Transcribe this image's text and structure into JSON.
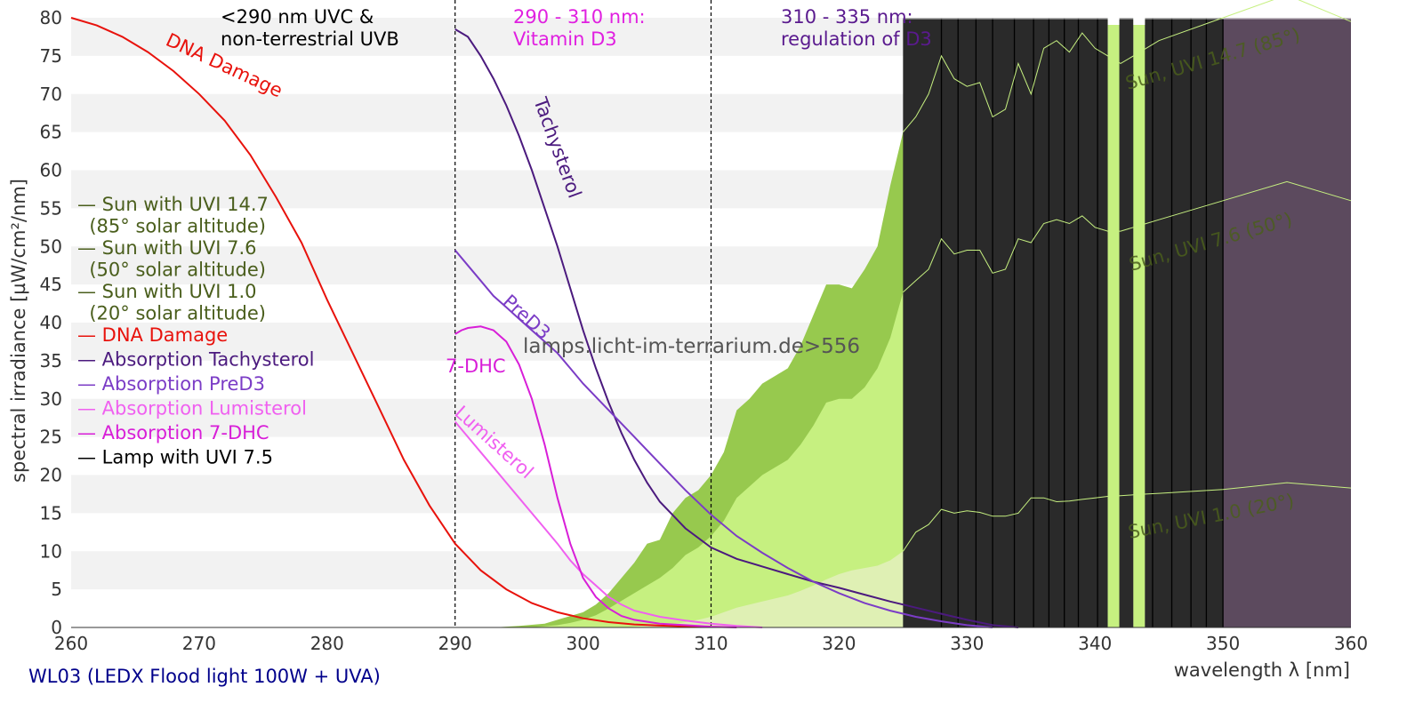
{
  "colors": {
    "background": "#ffffff",
    "band": "#f2f2f2",
    "sun": "#4a5e1c",
    "sun_high_fill": "#97c94e",
    "sun_mid_fill": "#c6f080",
    "sun_low_fill": "#dff0b4",
    "dna": "#e8120c",
    "tachysterol": "#4b1a7e",
    "pred3": "#7b3cc6",
    "lumisterol": "#f060f0",
    "dhc": "#d81ed8",
    "lamp": "#000000",
    "lamp_dark": "#2a2a2a",
    "lamp_uva": "#5c4a5e",
    "lamp_bright": "#c6f080",
    "vitd3_text": "#e020e0",
    "regd3_text": "#5a1a8e",
    "caption": "#00008b",
    "watermark": "#555555"
  },
  "chart_data": {
    "type": "line",
    "x_range": [
      260,
      360
    ],
    "y_range": [
      0,
      80
    ],
    "x_ticks": [
      260,
      270,
      280,
      290,
      300,
      310,
      320,
      330,
      340,
      350,
      360
    ],
    "y_ticks": [
      0,
      5,
      10,
      15,
      20,
      25,
      30,
      35,
      40,
      45,
      50,
      55,
      60,
      65,
      70,
      75,
      80
    ],
    "xlabel": "wavelength λ [nm]",
    "ylabel": "spectral irradiance [µW/cm²/nm]",
    "grid": "horizontal bands",
    "legend_position": "left",
    "caption": "WL03 (LEDX Flood light 100W + UVA)",
    "watermark": "lamps.licht-im-terrarium.de>556",
    "region_labels": [
      {
        "id": "uvc",
        "lines": [
          "<290 nm UVC &",
          "non-terrestrial UVB"
        ]
      },
      {
        "id": "vitd3",
        "lines": [
          "290 - 310 nm:",
          "Vitamin D3"
        ]
      },
      {
        "id": "regd3",
        "lines": [
          "310 - 335 nm:",
          "regulation of D3"
        ]
      }
    ],
    "dividers": [
      290,
      310
    ],
    "legend": [
      {
        "id": "sun_high",
        "lines": [
          "— Sun with UVI 14.7",
          "  (85° solar altitude)"
        ]
      },
      {
        "id": "sun_mid",
        "lines": [
          "— Sun with UVI 7.6",
          "  (50° solar altitude)"
        ]
      },
      {
        "id": "sun_low",
        "lines": [
          "— Sun with UVI 1.0",
          "  (20° solar altitude)"
        ]
      },
      {
        "id": "dna",
        "lines": [
          "— DNA Damage"
        ]
      },
      {
        "id": "tachysterol",
        "lines": [
          "— Absorption Tachysterol"
        ]
      },
      {
        "id": "pred3",
        "lines": [
          "— Absorption PreD3"
        ]
      },
      {
        "id": "lumisterol",
        "lines": [
          "— Absorption Lumisterol"
        ]
      },
      {
        "id": "dhc",
        "lines": [
          "— Absorption 7-DHC"
        ]
      },
      {
        "id": "lamp",
        "lines": [
          "— Lamp with UVI 7.5"
        ]
      }
    ],
    "curve_labels": [
      {
        "id": "dna",
        "text": "DNA Damage"
      },
      {
        "id": "tachysterol",
        "text": "Tachysterol"
      },
      {
        "id": "pred3",
        "text": "PreD3"
      },
      {
        "id": "dhc",
        "text": "7-DHC"
      },
      {
        "id": "lumisterol",
        "text": "Lumisterol"
      },
      {
        "id": "sun_high",
        "text": "Sun, UVI 14.7 (85°)"
      },
      {
        "id": "sun_mid",
        "text": "Sun, UVI 7.6 (50°)"
      },
      {
        "id": "sun_low",
        "text": "Sun, UVI 1.0 (20°)"
      }
    ],
    "series": [
      {
        "id": "sun_high",
        "name": "Sun with UVI 14.7",
        "x": [
          293,
          295,
          297,
          298,
          299,
          300,
          301,
          302,
          303,
          304,
          305,
          306,
          307,
          308,
          309,
          310,
          311,
          312,
          313,
          314,
          315,
          316,
          317,
          318,
          319,
          320,
          321,
          322,
          323,
          324,
          325,
          326,
          327,
          328,
          329,
          330,
          331,
          332,
          333,
          334,
          335,
          336,
          337,
          338,
          339,
          340,
          341,
          342,
          343,
          344,
          345,
          350,
          355,
          360
        ],
        "y": [
          0,
          0.2,
          0.5,
          1,
          1.5,
          2,
          3,
          4.5,
          6.5,
          8.5,
          11,
          11.5,
          15,
          17,
          18,
          20,
          23,
          28.5,
          30,
          32,
          33,
          34,
          37,
          41,
          45,
          45,
          44.5,
          47,
          50,
          58,
          65,
          67,
          70,
          75,
          72,
          71,
          71.5,
          67,
          68,
          74,
          70,
          76,
          77,
          75.5,
          78,
          76,
          75,
          74,
          75,
          76,
          77,
          80,
          83,
          79.5
        ]
      },
      {
        "id": "sun_mid",
        "name": "Sun with UVI 7.6",
        "x": [
          296,
          298,
          299,
          300,
          301,
          302,
          303,
          304,
          305,
          306,
          307,
          308,
          309,
          310,
          311,
          312,
          313,
          314,
          315,
          316,
          317,
          318,
          319,
          320,
          321,
          322,
          323,
          324,
          325,
          326,
          327,
          328,
          329,
          330,
          331,
          332,
          333,
          334,
          335,
          336,
          337,
          338,
          339,
          340,
          341,
          342,
          343,
          344,
          345,
          350,
          355,
          360
        ],
        "y": [
          0,
          0.3,
          0.6,
          1,
          1.6,
          2.5,
          3.5,
          4.5,
          5.5,
          6.5,
          7.8,
          9.5,
          10.5,
          12,
          14,
          17,
          18.5,
          20,
          21,
          22,
          24,
          26.5,
          29.5,
          30,
          30,
          31.5,
          34,
          38,
          44,
          45.5,
          47,
          51,
          49,
          49.5,
          49.5,
          46.5,
          47,
          51,
          50.5,
          53,
          53.5,
          53,
          54,
          52.5,
          52,
          52,
          52.5,
          53,
          53.5,
          56,
          58.5,
          56
        ]
      },
      {
        "id": "sun_low",
        "name": "Sun with UVI 1.0",
        "x": [
          303,
          305,
          307,
          308,
          309,
          310,
          311,
          312,
          313,
          314,
          315,
          316,
          317,
          318,
          319,
          320,
          321,
          322,
          323,
          324,
          325,
          326,
          327,
          328,
          329,
          330,
          331,
          332,
          333,
          334,
          335,
          336,
          337,
          338,
          339,
          340,
          341,
          342,
          343,
          344,
          345,
          350,
          355,
          360
        ],
        "y": [
          0,
          0.2,
          0.4,
          0.7,
          1,
          1.4,
          2,
          2.6,
          3,
          3.4,
          3.8,
          4.2,
          4.8,
          5.5,
          6.3,
          7,
          7.5,
          7.8,
          8.1,
          8.8,
          10,
          12.5,
          13.5,
          15.5,
          15,
          15.3,
          15.1,
          14.6,
          14.6,
          15,
          17,
          17,
          16.5,
          16.6,
          16.8,
          17,
          17.2,
          17.3,
          17.4,
          17.5,
          17.6,
          18.1,
          19,
          18.3
        ]
      },
      {
        "id": "dna",
        "name": "DNA Damage",
        "x": [
          260,
          262,
          264,
          266,
          268,
          270,
          272,
          274,
          276,
          278,
          280,
          282,
          284,
          286,
          288,
          290,
          292,
          294,
          296,
          298,
          300,
          302,
          304,
          306,
          308,
          310
        ],
        "y": [
          80,
          79,
          77.5,
          75.5,
          73,
          70,
          66.5,
          62,
          56.5,
          50.5,
          43,
          36,
          29,
          22,
          16,
          11,
          7.5,
          5,
          3.2,
          2,
          1.2,
          0.7,
          0.4,
          0.25,
          0.15,
          0.1
        ]
      },
      {
        "id": "tachysterol",
        "name": "Absorption Tachysterol",
        "x": [
          290,
          291,
          292,
          293,
          294,
          295,
          296,
          297,
          298,
          299,
          300,
          301,
          302,
          303,
          304,
          305,
          306,
          308,
          310,
          312,
          314,
          316,
          318,
          320,
          322,
          324,
          326,
          328,
          330,
          332,
          334
        ],
        "y": [
          78.5,
          77.5,
          75,
          72,
          68.5,
          64.5,
          60,
          55,
          50,
          44.5,
          39,
          34,
          29.5,
          25.5,
          22,
          19,
          16.5,
          13,
          10.5,
          9,
          8,
          7,
          6,
          5.2,
          4.3,
          3.4,
          2.6,
          1.8,
          1,
          0.3,
          0
        ]
      },
      {
        "id": "pred3",
        "name": "Absorption PreD3",
        "x": [
          290,
          291,
          292,
          293,
          294,
          295,
          296,
          297,
          298,
          299,
          300,
          302,
          304,
          306,
          308,
          310,
          312,
          314,
          316,
          318,
          320,
          322,
          324,
          326,
          328,
          330,
          332
        ],
        "y": [
          49.5,
          47.5,
          45.5,
          43.5,
          42,
          40.5,
          39,
          37.5,
          36,
          34,
          32,
          28.5,
          25,
          21.5,
          18,
          14.8,
          12,
          9.8,
          7.8,
          6,
          4.5,
          3.2,
          2.2,
          1.4,
          0.8,
          0.3,
          0
        ]
      },
      {
        "id": "lumisterol",
        "name": "Absorption Lumisterol",
        "x": [
          290,
          291,
          292,
          293,
          294,
          295,
          296,
          297,
          298,
          299,
          300,
          301,
          302,
          303,
          304,
          306,
          308,
          310,
          312,
          314
        ],
        "y": [
          27,
          25,
          23,
          21,
          19,
          17,
          15,
          13,
          11,
          8.8,
          7,
          5.5,
          4,
          3,
          2.2,
          1.4,
          0.9,
          0.5,
          0.2,
          0
        ]
      },
      {
        "id": "dhc",
        "name": "Absorption 7-DHC",
        "x": [
          290,
          290.5,
          291,
          292,
          293,
          294,
          295,
          296,
          297,
          298,
          299,
          300,
          301,
          302,
          303,
          304,
          306,
          308,
          310,
          312
        ],
        "y": [
          38.5,
          39,
          39.3,
          39.5,
          39,
          37.5,
          34.5,
          30,
          24,
          17,
          11,
          6.5,
          4,
          2.5,
          1.5,
          1,
          0.5,
          0.3,
          0.1,
          0
        ]
      }
    ],
    "lamp_segments": [
      {
        "from": 325,
        "to": 341,
        "level": 80,
        "tone": "dark"
      },
      {
        "from": 341,
        "to": 341.9,
        "level": 80,
        "tone": "bright"
      },
      {
        "from": 341.9,
        "to": 343,
        "level": 80,
        "tone": "dark"
      },
      {
        "from": 343,
        "to": 343.9,
        "level": 80,
        "tone": "bright"
      },
      {
        "from": 343.9,
        "to": 350,
        "level": 80,
        "tone": "dark"
      },
      {
        "from": 350,
        "to": 360,
        "level": 80,
        "tone": "uva"
      }
    ],
    "lamp_peak_lines": [
      328,
      329.3,
      330.7,
      332,
      333.7,
      335.2,
      336.4,
      337.6,
      338.7,
      340.2,
      344.5,
      346,
      347.5,
      348.7,
      350
    ]
  }
}
